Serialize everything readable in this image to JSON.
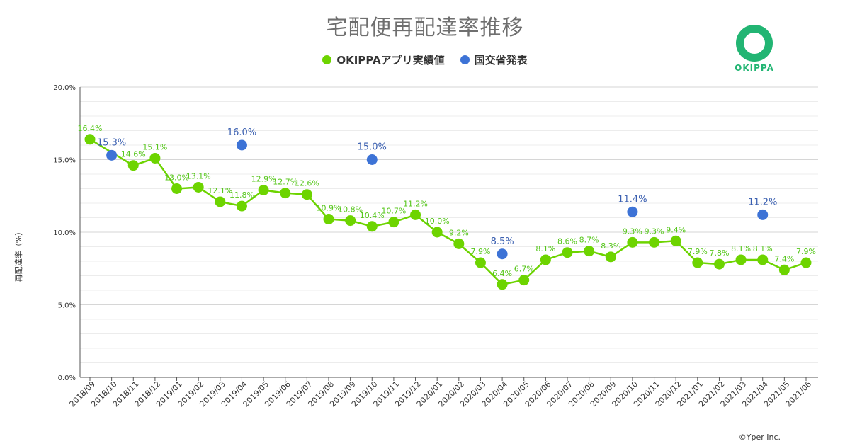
{
  "chart_data": {
    "type": "line",
    "title": "宅配便再配達率推移",
    "ylabel": "再配達率（%）",
    "xlabel": "",
    "ylim": [
      0,
      20
    ],
    "yticks": [
      "0.0%",
      "5.0%",
      "10.0%",
      "15.0%",
      "20.0%"
    ],
    "grid": true,
    "legend_position": "top",
    "categories": [
      "2018/09",
      "2018/10",
      "2018/11",
      "2018/12",
      "2019/01",
      "2019/02",
      "2019/03",
      "2019/04",
      "2019/05",
      "2019/06",
      "2019/07",
      "2019/08",
      "2019/09",
      "2019/10",
      "2019/11",
      "2019/12",
      "2020/01",
      "2020/02",
      "2020/03",
      "2020/04",
      "2020/05",
      "2020/06",
      "2020/07",
      "2020/08",
      "2020/09",
      "2020/10",
      "2020/11",
      "2020/12",
      "2021/01",
      "2021/02",
      "2021/03",
      "2021/04",
      "2021/05",
      "2021/06"
    ],
    "series": [
      {
        "name": "OKIPPAアプリ実績値",
        "color": "#6dd400",
        "style": "line-with-markers",
        "values": [
          16.4,
          null,
          14.6,
          15.1,
          13.0,
          13.1,
          12.1,
          11.8,
          12.9,
          12.7,
          12.6,
          10.9,
          10.8,
          10.4,
          10.7,
          11.2,
          10.0,
          9.2,
          7.9,
          6.4,
          6.7,
          8.1,
          8.6,
          8.7,
          8.3,
          9.3,
          9.3,
          9.4,
          7.9,
          7.8,
          8.1,
          8.1,
          7.4,
          7.9
        ],
        "labels": [
          "16.4%",
          null,
          "14.6%",
          "15.1%",
          "13.0%",
          "13.1%",
          "12.1%",
          "11.8%",
          "12.9%",
          "12.7%",
          "12.6%",
          "10.9%",
          "10.8%",
          "10.4%",
          "10.7%",
          "11.2%",
          "10.0%",
          "9.2%",
          "7.9%",
          "6.4%",
          "6.7%",
          "8.1%",
          "8.6%",
          "8.7%",
          "8.3%",
          "9.3%",
          "9.3%",
          "9.4%",
          "7.9%",
          "7.8%",
          "8.1%",
          "8.1%",
          "7.4%",
          "7.9%"
        ]
      },
      {
        "name": "国交省発表",
        "color": "#3d73d6",
        "style": "markers",
        "values": [
          null,
          15.3,
          null,
          null,
          null,
          null,
          null,
          16.0,
          null,
          null,
          null,
          null,
          null,
          15.0,
          null,
          null,
          null,
          null,
          null,
          8.5,
          null,
          null,
          null,
          null,
          null,
          11.4,
          null,
          null,
          null,
          null,
          null,
          11.2,
          null,
          null
        ],
        "labels": [
          null,
          "15.3%",
          null,
          null,
          null,
          null,
          null,
          "16.0%",
          null,
          null,
          null,
          null,
          null,
          "15.0%",
          null,
          null,
          null,
          null,
          null,
          "8.5%",
          null,
          null,
          null,
          null,
          null,
          "11.4%",
          null,
          null,
          null,
          null,
          null,
          "11.2%",
          null,
          null
        ]
      }
    ]
  },
  "logo": {
    "text": "OKIPPA",
    "color": "#22b573"
  },
  "copyright": "©Yper Inc."
}
